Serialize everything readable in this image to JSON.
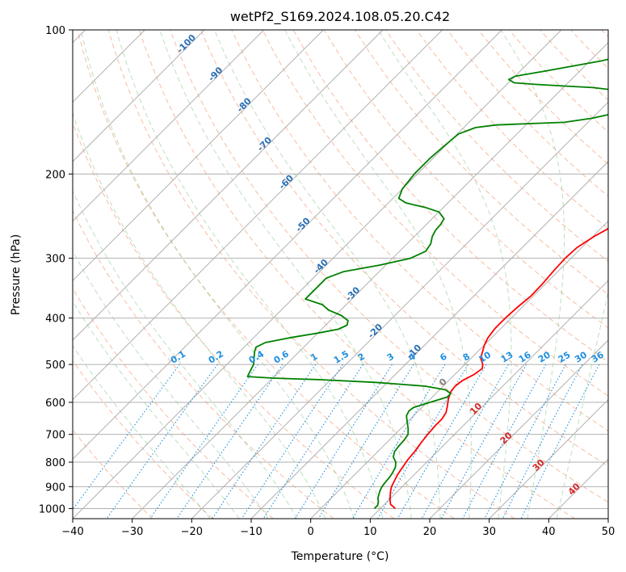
{
  "chart_data": {
    "type": "line",
    "title": "wetPf2_S169.2024.108.05.20.C42",
    "xlabel": "Temperature (°C)",
    "ylabel": "Pressure (hPa)",
    "xlim": [
      -40,
      50
    ],
    "ylim": [
      1050,
      100
    ],
    "y_scale": "log",
    "grid": true,
    "x_ticks": [
      "−40",
      "−30",
      "−20",
      "−10",
      "0",
      "10",
      "20",
      "30",
      "40",
      "50"
    ],
    "x_tick_values": [
      -40,
      -30,
      -20,
      -10,
      0,
      10,
      20,
      30,
      40,
      50
    ],
    "y_ticks": [
      "100",
      "200",
      "300",
      "400",
      "500",
      "600",
      "700",
      "800",
      "900",
      "1000"
    ],
    "y_tick_values": [
      100,
      200,
      300,
      400,
      500,
      600,
      700,
      800,
      900,
      1000
    ],
    "colors": {
      "temperature": "#ff0000",
      "dewpoint": "#008000",
      "isotherm": "#b0b0b0",
      "dry_adiabat": "#f4a582",
      "moist_adiabat": "#8fcc8f",
      "mixing_ratio": "#1f8fe0",
      "ref_blue": "#2a6fb5",
      "ref_red": "#d62728",
      "ref_gray": "#808080"
    },
    "series": [
      {
        "color": "red",
        "points": [
          {
            "p": 1000,
            "t": 12.5
          },
          {
            "p": 980,
            "t": 11.0
          },
          {
            "p": 960,
            "t": 10.2
          },
          {
            "p": 940,
            "t": 9.5
          },
          {
            "p": 920,
            "t": 8.8
          },
          {
            "p": 900,
            "t": 8.2
          },
          {
            "p": 880,
            "t": 7.8
          },
          {
            "p": 850,
            "t": 7.2
          },
          {
            "p": 820,
            "t": 6.8
          },
          {
            "p": 790,
            "t": 6.4
          },
          {
            "p": 760,
            "t": 6.2
          },
          {
            "p": 730,
            "t": 5.8
          },
          {
            "p": 700,
            "t": 5.5
          },
          {
            "p": 670,
            "t": 5.3
          },
          {
            "p": 650,
            "t": 5.3
          },
          {
            "p": 630,
            "t": 4.9
          },
          {
            "p": 610,
            "t": 4.0
          },
          {
            "p": 590,
            "t": 3.0
          },
          {
            "p": 570,
            "t": 2.2
          },
          {
            "p": 555,
            "t": 2.0
          },
          {
            "p": 540,
            "t": 2.3
          },
          {
            "p": 525,
            "t": 3.2
          },
          {
            "p": 510,
            "t": 3.6
          },
          {
            "p": 500,
            "t": 3.0
          },
          {
            "p": 485,
            "t": 1.6
          },
          {
            "p": 470,
            "t": 0.8
          },
          {
            "p": 455,
            "t": 0.0
          },
          {
            "p": 440,
            "t": -0.6
          },
          {
            "p": 420,
            "t": -1.0
          },
          {
            "p": 400,
            "t": -1.0
          },
          {
            "p": 380,
            "t": -0.8
          },
          {
            "p": 360,
            "t": -0.4
          },
          {
            "p": 340,
            "t": -0.5
          },
          {
            "p": 320,
            "t": -0.8
          },
          {
            "p": 300,
            "t": -1.0
          },
          {
            "p": 285,
            "t": -0.8
          },
          {
            "p": 270,
            "t": 0.2
          },
          {
            "p": 255,
            "t": 1.8
          },
          {
            "p": 240,
            "t": 4.0
          },
          {
            "p": 230,
            "t": 6.0
          },
          {
            "p": 220,
            "t": 7.8
          },
          {
            "p": 210,
            "t": 9.2
          },
          {
            "p": 200,
            "t": 10.4
          },
          {
            "p": 190,
            "t": 11.5
          },
          {
            "p": 180,
            "t": 12.6
          },
          {
            "p": 170,
            "t": 13.8
          },
          {
            "p": 160,
            "t": 15.5
          },
          {
            "p": 152,
            "t": 17.5
          },
          {
            "p": 147,
            "t": 18.0
          },
          {
            "p": 140,
            "t": 19.0
          },
          {
            "p": 134,
            "t": 19.6
          },
          {
            "p": 128,
            "t": 20.3
          },
          {
            "p": 124,
            "t": 21.4
          },
          {
            "p": 120,
            "t": 23.4
          },
          {
            "p": 116,
            "t": 25.0
          },
          {
            "p": 112,
            "t": 26.0
          },
          {
            "p": 108,
            "t": 26.8
          },
          {
            "p": 104,
            "t": 28.0
          },
          {
            "p": 100,
            "t": 29.2
          }
        ]
      },
      {
        "color": "green",
        "points": [
          {
            "p": 1000,
            "t": 9.0
          },
          {
            "p": 985,
            "t": 9.0
          },
          {
            "p": 970,
            "t": 8.6
          },
          {
            "p": 950,
            "t": 7.8
          },
          {
            "p": 920,
            "t": 7.0
          },
          {
            "p": 900,
            "t": 6.6
          },
          {
            "p": 880,
            "t": 6.4
          },
          {
            "p": 860,
            "t": 6.3
          },
          {
            "p": 840,
            "t": 6.0
          },
          {
            "p": 820,
            "t": 5.6
          },
          {
            "p": 800,
            "t": 4.8
          },
          {
            "p": 780,
            "t": 3.5
          },
          {
            "p": 760,
            "t": 2.8
          },
          {
            "p": 740,
            "t": 2.6
          },
          {
            "p": 720,
            "t": 2.5
          },
          {
            "p": 700,
            "t": 2.2
          },
          {
            "p": 680,
            "t": 1.2
          },
          {
            "p": 660,
            "t": 0.0
          },
          {
            "p": 640,
            "t": -1.2
          },
          {
            "p": 625,
            "t": -1.6
          },
          {
            "p": 615,
            "t": -1.4
          },
          {
            "p": 600,
            "t": 0.5
          },
          {
            "p": 585,
            "t": 2.5
          },
          {
            "p": 575,
            "t": 2.5
          },
          {
            "p": 565,
            "t": 1.0
          },
          {
            "p": 555,
            "t": -3.0
          },
          {
            "p": 545,
            "t": -12.0
          },
          {
            "p": 538,
            "t": -22.0
          },
          {
            "p": 534,
            "t": -30.0
          },
          {
            "p": 530,
            "t": -34.5
          },
          {
            "p": 515,
            "t": -35.0
          },
          {
            "p": 500,
            "t": -35.5
          },
          {
            "p": 485,
            "t": -36.5
          },
          {
            "p": 470,
            "t": -37.5
          },
          {
            "p": 460,
            "t": -38.0
          },
          {
            "p": 450,
            "t": -37.2
          },
          {
            "p": 440,
            "t": -34.0
          },
          {
            "p": 430,
            "t": -30.0
          },
          {
            "p": 422,
            "t": -27.2
          },
          {
            "p": 414,
            "t": -26.4
          },
          {
            "p": 405,
            "t": -27.0
          },
          {
            "p": 395,
            "t": -29.0
          },
          {
            "p": 385,
            "t": -32.0
          },
          {
            "p": 375,
            "t": -34.0
          },
          {
            "p": 365,
            "t": -37.8
          },
          {
            "p": 330,
            "t": -37.8
          },
          {
            "p": 320,
            "t": -36.0
          },
          {
            "p": 310,
            "t": -31.0
          },
          {
            "p": 300,
            "t": -27.0
          },
          {
            "p": 290,
            "t": -25.6
          },
          {
            "p": 280,
            "t": -26.0
          },
          {
            "p": 270,
            "t": -27.0
          },
          {
            "p": 262,
            "t": -27.5
          },
          {
            "p": 255,
            "t": -27.6
          },
          {
            "p": 248,
            "t": -28.0
          },
          {
            "p": 240,
            "t": -30.0
          },
          {
            "p": 235,
            "t": -33.0
          },
          {
            "p": 230,
            "t": -37.0
          },
          {
            "p": 225,
            "t": -39.0
          },
          {
            "p": 215,
            "t": -40.0
          },
          {
            "p": 200,
            "t": -40.5
          },
          {
            "p": 185,
            "t": -40.5
          },
          {
            "p": 175,
            "t": -40.2
          },
          {
            "p": 165,
            "t": -39.8
          },
          {
            "p": 160,
            "t": -38.0
          },
          {
            "p": 158,
            "t": -35.0
          },
          {
            "p": 157,
            "t": -30.0
          },
          {
            "p": 156,
            "t": -24.0
          },
          {
            "p": 153,
            "t": -20.0
          },
          {
            "p": 148,
            "t": -16.0
          },
          {
            "p": 143,
            "t": -14.0
          },
          {
            "p": 138,
            "t": -15.0
          },
          {
            "p": 134,
            "t": -20.0
          },
          {
            "p": 132,
            "t": -25.0
          },
          {
            "p": 131,
            "t": -30.0
          },
          {
            "p": 130,
            "t": -35.0
          },
          {
            "p": 129,
            "t": -39.0
          },
          {
            "p": 127,
            "t": -40.5
          },
          {
            "p": 125,
            "t": -40.0
          },
          {
            "p": 122,
            "t": -36.0
          },
          {
            "p": 119,
            "t": -32.0
          },
          {
            "p": 116,
            "t": -28.0
          },
          {
            "p": 112,
            "t": -24.0
          },
          {
            "p": 108,
            "t": -21.0
          },
          {
            "p": 104,
            "t": -19.5
          },
          {
            "p": 100,
            "t": -18.5
          }
        ]
      }
    ],
    "mixing_ratio_labels": [
      "0.1",
      "0.2",
      "0.4",
      "0.6",
      "1",
      "1.5",
      "2",
      "3",
      "4",
      "6",
      "8",
      "10",
      "13",
      "16",
      "20",
      "25",
      "30",
      "36"
    ],
    "mixing_ratio_values": [
      0.1,
      0.2,
      0.4,
      0.6,
      1,
      1.5,
      2,
      3,
      4,
      6,
      8,
      10,
      13,
      16,
      20,
      25,
      30,
      36
    ],
    "reference_labels_blue": [
      "-100",
      "-90",
      "-80",
      "-70",
      "-60",
      "-50",
      "-40",
      "-30",
      "-20",
      "-10"
    ],
    "reference_labels_red": [
      "0",
      "10",
      "20",
      "30",
      "40"
    ]
  }
}
